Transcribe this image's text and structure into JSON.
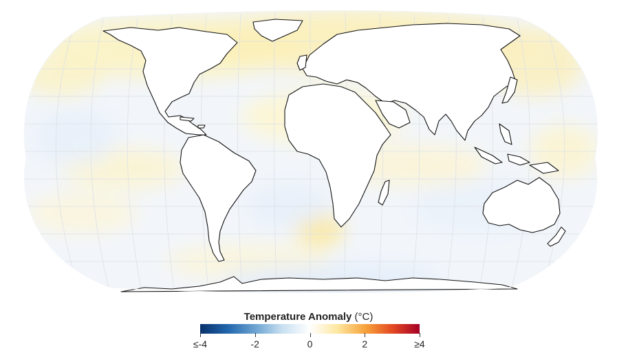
{
  "map": {
    "projection": "Robinson",
    "graticule": true,
    "colors": {
      "ocean_base": "#eef4fb",
      "warm_light": "#fdf6c9",
      "warm_mid": "#fbe9a0",
      "cool_light": "#e3eefa",
      "coast": "#111111",
      "land": "#ffffff",
      "grid": "#d9dde2"
    }
  },
  "legend": {
    "title": "Temperature Anomaly",
    "unit": "(°C)",
    "colors": [
      "#08306b",
      "#2166ac",
      "#6ba3d1",
      "#c9e0f1",
      "#ffffff",
      "#fde7a1",
      "#f7a43d",
      "#e34a22",
      "#a50026"
    ],
    "ticks": [
      "≤-4",
      "-2",
      "0",
      "2",
      "≥4"
    ],
    "range": [
      -4,
      4
    ]
  }
}
